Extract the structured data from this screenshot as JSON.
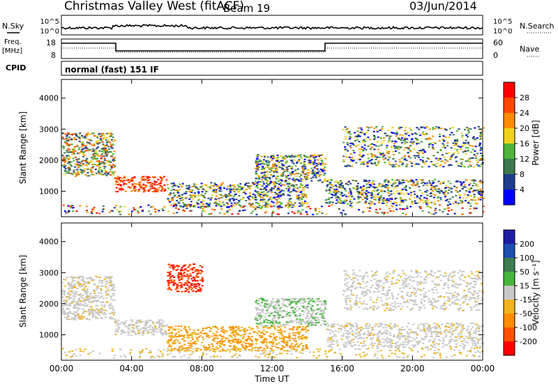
{
  "header": {
    "station": "Christmas Valley West (fitACF)",
    "beam": "Beam 19",
    "date": "03/Jun/2014"
  },
  "top_panels": {
    "nsky_label": "N.Sky",
    "nsearch_label": "N.Search",
    "nsky_ticks": [
      "10^5",
      "10^0"
    ],
    "freq_label_line1": "Freq.",
    "freq_label_line2": "[MHz]",
    "freq_ticks": [
      "18",
      "8"
    ],
    "nave_label": "Nave",
    "nave_ticks": [
      "60",
      "0"
    ],
    "cpid_label": "CPID",
    "cpid_text": "normal (fast) 151 IF"
  },
  "colors": {
    "power": [
      "#0000ff",
      "#1e3c8c",
      "#3c7850",
      "#50b43c",
      "#f0d21e",
      "#ff8c00",
      "#ff4600",
      "#ff0000"
    ],
    "velocity": [
      "#1e1ea0",
      "#1e4eb0",
      "#3c7c50",
      "#46b43c",
      "#c8c8c8",
      "#f0b41e",
      "#ff8c00",
      "#ff5000",
      "#ff0000"
    ]
  },
  "chart_data": [
    {
      "type": "heatmap",
      "title": "",
      "xlabel": "Time UT",
      "ylabel": "Slant Range [km]",
      "x_ticks": [
        "00:00",
        "04:00",
        "08:00",
        "12:00",
        "16:00",
        "20:00",
        "00:00"
      ],
      "x_range_hours": [
        0,
        24
      ],
      "y_ticks": [
        1000,
        2000,
        3000,
        4000
      ],
      "ylim": [
        180,
        4600
      ],
      "colorbar": {
        "label": "Power [dB]",
        "ticks": [
          4,
          8,
          12,
          16,
          20,
          24,
          28
        ]
      },
      "echo_regions": [
        {
          "t": [
            0,
            3
          ],
          "r": [
            1500,
            2900
          ],
          "level": "medium-high"
        },
        {
          "t": [
            3,
            6
          ],
          "r": [
            1000,
            1500
          ],
          "level": "high"
        },
        {
          "t": [
            6,
            14
          ],
          "r": [
            500,
            1300
          ],
          "level": "medium"
        },
        {
          "t": [
            11,
            15
          ],
          "r": [
            1300,
            2200
          ],
          "level": "medium"
        },
        {
          "t": [
            15,
            24
          ],
          "r": [
            600,
            1400
          ],
          "level": "medium"
        },
        {
          "t": [
            16,
            24
          ],
          "r": [
            1800,
            3100
          ],
          "level": "medium"
        }
      ]
    },
    {
      "type": "heatmap",
      "title": "",
      "xlabel": "Time UT",
      "ylabel": "Slant Range [km]",
      "x_ticks": [
        "00:00",
        "04:00",
        "08:00",
        "12:00",
        "16:00",
        "20:00",
        "00:00"
      ],
      "x_range_hours": [
        0,
        24
      ],
      "y_ticks": [
        1000,
        2000,
        3000,
        4000
      ],
      "ylim": [
        180,
        4600
      ],
      "colorbar": {
        "label": "Velocity [m s⁻¹]",
        "ticks": [
          200,
          100,
          50,
          15,
          -15,
          -50,
          -100,
          -200
        ]
      },
      "echo_regions": [
        {
          "t": [
            0,
            3
          ],
          "r": [
            1500,
            2900
          ],
          "velocity": -15
        },
        {
          "t": [
            3,
            6
          ],
          "r": [
            1000,
            1500
          ],
          "velocity": 0
        },
        {
          "t": [
            6,
            14
          ],
          "r": [
            500,
            1300
          ],
          "velocity": -50
        },
        {
          "t": [
            11,
            15
          ],
          "r": [
            1300,
            2200
          ],
          "velocity": 15
        },
        {
          "t": [
            15,
            24
          ],
          "r": [
            600,
            1400
          ],
          "velocity": 0
        },
        {
          "t": [
            16,
            24
          ],
          "r": [
            1800,
            3100
          ],
          "velocity": 0
        },
        {
          "t": [
            6,
            8
          ],
          "r": [
            2400,
            3300
          ],
          "velocity": -200
        }
      ]
    }
  ]
}
